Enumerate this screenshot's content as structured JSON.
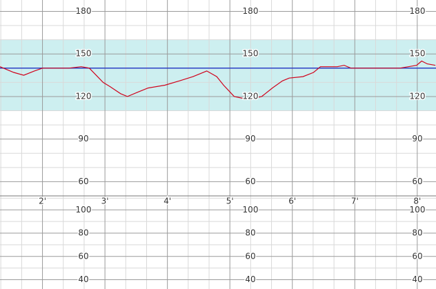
{
  "chart_data": [
    {
      "type": "line",
      "x": [
        1.32,
        1.54,
        1.7,
        1.87,
        2.0,
        2.2,
        2.42,
        2.62,
        2.75,
        2.86,
        2.97,
        3.08,
        3.25,
        3.36,
        3.52,
        3.69,
        3.96,
        4.19,
        4.41,
        4.63,
        4.79,
        4.9,
        5.07,
        5.29,
        5.51,
        5.68,
        5.84,
        5.95,
        6.17,
        6.34,
        6.45,
        6.72,
        6.83,
        6.94,
        7.17,
        7.39,
        7.72,
        7.99,
        8.07,
        8.16,
        8.29
      ],
      "values": [
        141,
        137,
        135,
        138,
        140,
        140,
        140,
        141,
        140,
        135,
        130,
        127,
        122,
        120,
        123,
        126,
        128,
        131,
        134,
        138,
        134,
        128,
        120,
        118,
        120,
        126,
        131,
        133,
        134,
        137,
        141,
        141,
        142,
        140,
        140,
        140,
        140,
        142,
        145,
        143,
        142
      ],
      "color": "#d0021b",
      "xlim": [
        1.32,
        8.3
      ],
      "xticks": [
        {
          "value": 2,
          "label": "2'"
        },
        {
          "value": 3,
          "label": "3'"
        },
        {
          "value": 4,
          "label": "4'"
        },
        {
          "value": 5,
          "label": "5'"
        },
        {
          "value": 6,
          "label": "6'"
        },
        {
          "value": 7,
          "label": "7'"
        },
        {
          "value": 8,
          "label": "8'"
        }
      ],
      "minor_xticks": [
        1.333,
        1.667,
        2.333,
        2.667,
        3.333,
        3.667,
        4.333,
        4.667,
        5.333,
        5.667,
        6.333,
        6.667,
        7.333,
        7.667
      ],
      "ylim": [
        50,
        188
      ],
      "yticks": [
        60,
        90,
        120,
        150,
        180
      ],
      "minor_yticks": [
        70,
        80,
        100,
        110,
        130,
        140,
        160,
        170
      ],
      "band": [
        110,
        160
      ],
      "band_color": "#cdeff0",
      "baseline": 140,
      "baseline_color": "#2b3fc4",
      "grid": true
    },
    {
      "type": "line",
      "ylim": [
        32,
        112
      ],
      "yticks": [
        40,
        60,
        80,
        100
      ],
      "minor_yticks": [
        50,
        70,
        90,
        110
      ],
      "grid": true
    }
  ]
}
